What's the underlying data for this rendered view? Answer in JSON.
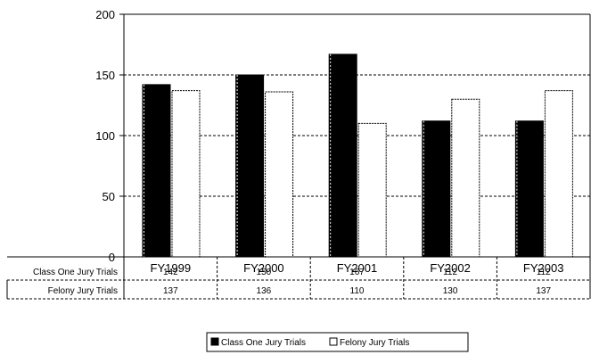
{
  "chart_data": {
    "type": "bar",
    "categories": [
      "FY1999",
      "FY2000",
      "FY2001",
      "FY2002",
      "FY2003"
    ],
    "series": [
      {
        "name": "Class One Jury Trials",
        "values": [
          142,
          150,
          167,
          112,
          112
        ],
        "color": "#000000"
      },
      {
        "name": "Felony Jury Trials",
        "values": [
          137,
          136,
          110,
          130,
          137
        ],
        "color": "#ffffff"
      }
    ],
    "ylim": [
      0,
      200
    ],
    "yticks": [
      0,
      50,
      100,
      150,
      200
    ],
    "grid": true,
    "legend_placement": "bottom-center",
    "data_table": true
  }
}
